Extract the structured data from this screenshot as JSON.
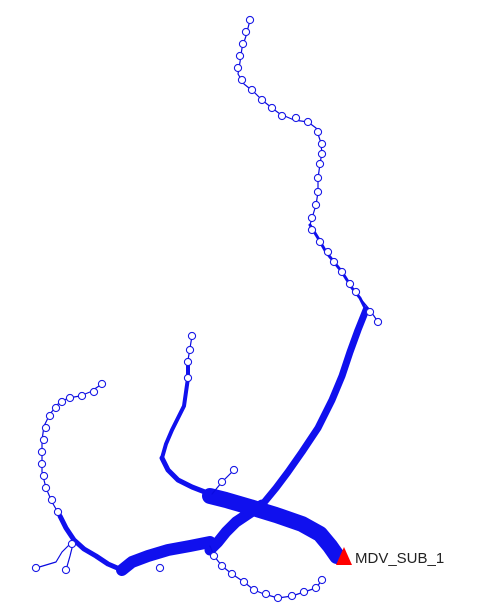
{
  "diagram": {
    "type": "distribution-feeder-map",
    "substation": {
      "label": "MDV_SUB_1",
      "marker_color": "#ff0000"
    },
    "line_color": "#0a0ae0",
    "node_color": "#1a1ae6"
  }
}
